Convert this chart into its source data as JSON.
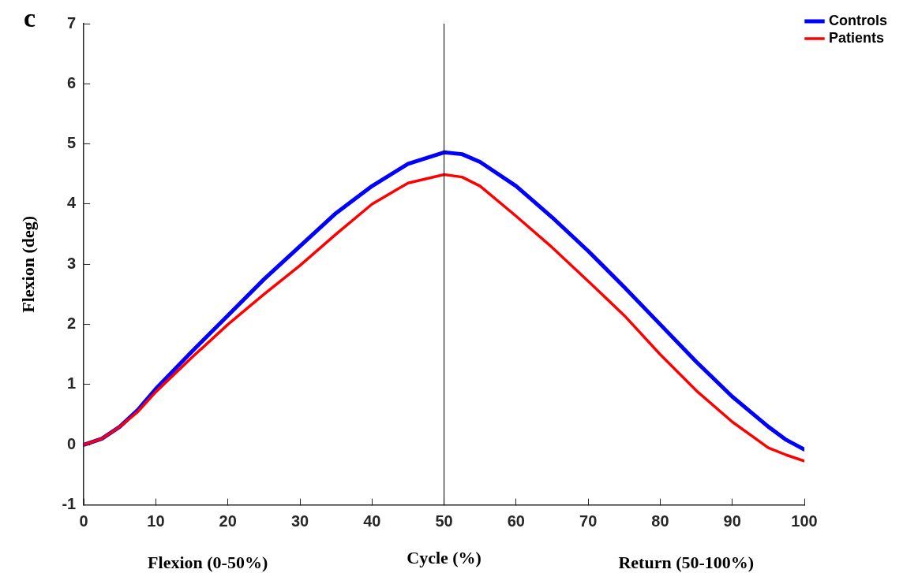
{
  "chart_data": {
    "type": "line",
    "xlabel": "Cycle (%)",
    "ylabel": "Flexion (deg)",
    "annotations": [
      "c",
      "Flexion (0-50%)",
      "Return (50-100%)"
    ],
    "x": [
      0,
      2.5,
      5,
      7.5,
      10,
      15,
      20,
      25,
      30,
      35,
      40,
      45,
      50,
      52.5,
      55,
      60,
      65,
      70,
      75,
      80,
      85,
      90,
      95,
      97.5,
      100
    ],
    "series": [
      {
        "name": "Controls",
        "color": "#0000ff",
        "values": [
          0,
          0.1,
          0.3,
          0.58,
          0.93,
          1.55,
          2.15,
          2.75,
          3.3,
          3.85,
          4.3,
          4.67,
          4.86,
          4.83,
          4.7,
          4.3,
          3.78,
          3.22,
          2.62,
          2.0,
          1.38,
          0.8,
          0.3,
          0.08,
          -0.08
        ]
      },
      {
        "name": "Patients",
        "color": "#ff0000",
        "values": [
          0,
          0.1,
          0.3,
          0.55,
          0.88,
          1.45,
          2.0,
          2.5,
          2.98,
          3.5,
          4.0,
          4.35,
          4.49,
          4.45,
          4.3,
          3.8,
          3.28,
          2.72,
          2.15,
          1.5,
          0.9,
          0.38,
          -0.05,
          -0.17,
          -0.27
        ]
      }
    ],
    "xlim": [
      0,
      100
    ],
    "xticks": [
      0,
      10,
      20,
      30,
      40,
      50,
      60,
      70,
      80,
      90,
      100
    ],
    "ylim": [
      -1,
      7
    ],
    "yticks": [
      -1,
      0,
      1,
      2,
      3,
      4,
      5,
      6,
      7
    ],
    "ref_lines": [
      {
        "axis": "x",
        "value": 50,
        "color": "#000000"
      }
    ],
    "grid": false,
    "legend": "top right",
    "line_style": "solid",
    "marker": "none"
  }
}
